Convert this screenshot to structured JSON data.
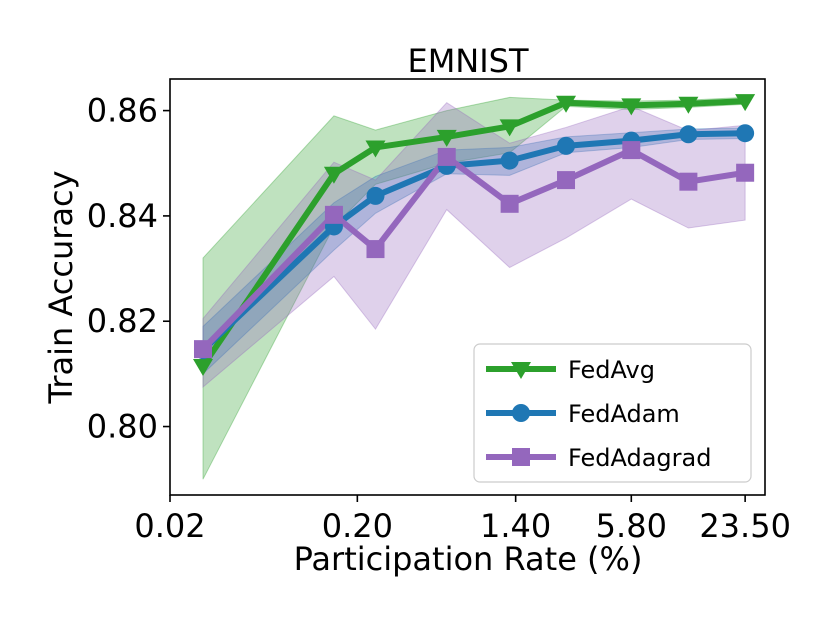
{
  "chart_data": {
    "type": "line",
    "title": "EMNIST",
    "xlabel": "Participation Rate (%)",
    "ylabel": "Train Accuracy",
    "x_scale": "log",
    "xlim": [
      0.02,
      30
    ],
    "ylim": [
      0.787,
      0.866
    ],
    "x_ticks": [
      0.02,
      0.2,
      1.4,
      5.8,
      23.5
    ],
    "x_tick_labels": [
      "0.02",
      "0.20",
      "1.40",
      "5.80",
      "23.50"
    ],
    "y_ticks": [
      0.8,
      0.82,
      0.84,
      0.86
    ],
    "y_tick_labels": [
      "0.80",
      "0.82",
      "0.84",
      "0.86"
    ],
    "grid": false,
    "legend_position": "lower-right",
    "x": [
      0.03,
      0.15,
      0.25,
      0.6,
      1.3,
      2.6,
      5.8,
      11.7,
      23.5
    ],
    "series": [
      {
        "name": "FedAvg",
        "color": "#2ca02c",
        "marker": "triangle-down",
        "values": [
          0.8115,
          0.848,
          0.853,
          0.855,
          0.857,
          0.8615,
          0.861,
          0.8613,
          0.8618
        ],
        "lower": [
          0.79,
          0.838,
          0.846,
          0.85,
          0.852,
          0.8608,
          0.8602,
          0.8606,
          0.8612
        ],
        "upper": [
          0.832,
          0.859,
          0.8563,
          0.86,
          0.8625,
          0.862,
          0.8618,
          0.862,
          0.8625
        ]
      },
      {
        "name": "FedAdam",
        "color": "#1f77b4",
        "marker": "circle",
        "values": [
          0.8145,
          0.838,
          0.8438,
          0.8495,
          0.8505,
          0.8533,
          0.8543,
          0.8555,
          0.8557
        ],
        "lower": [
          0.81,
          0.8335,
          0.8405,
          0.848,
          0.8477,
          0.852,
          0.853,
          0.8545,
          0.8547
        ],
        "upper": [
          0.819,
          0.8425,
          0.8475,
          0.8525,
          0.853,
          0.855,
          0.8558,
          0.8565,
          0.8567
        ]
      },
      {
        "name": "FedAdagrad",
        "color": "#9467bd",
        "marker": "square",
        "values": [
          0.8147,
          0.8402,
          0.8337,
          0.8512,
          0.8423,
          0.8468,
          0.8525,
          0.8465,
          0.8482
        ],
        "lower": [
          0.8075,
          0.8285,
          0.8185,
          0.8412,
          0.8302,
          0.8358,
          0.8432,
          0.8377,
          0.8392
        ],
        "upper": [
          0.8205,
          0.8502,
          0.8468,
          0.8615,
          0.8538,
          0.8568,
          0.8608,
          0.8562,
          0.8572
        ]
      }
    ]
  }
}
